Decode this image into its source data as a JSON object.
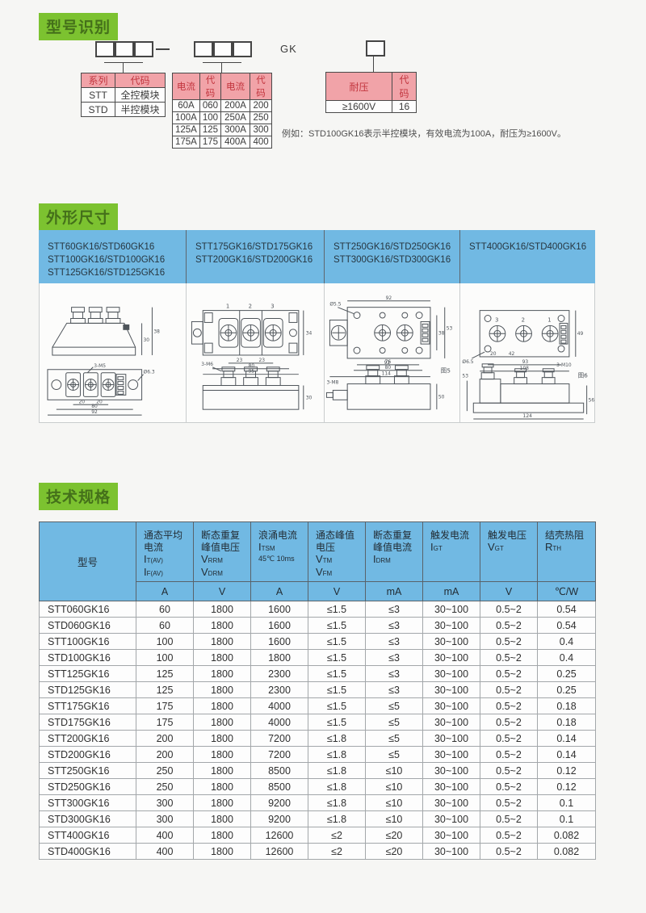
{
  "colors": {
    "green_bg": "#7cc230",
    "green_text": "#44701a",
    "pink_header_bg": "#f1a3a8",
    "pink_header_text": "#c2353e",
    "blue_header": "#71b9e3",
    "page_bg": "#f6f6f4"
  },
  "section_model": {
    "title": "型号识别",
    "gk_label": "GK",
    "series_table": {
      "headers": [
        "系列",
        "代码"
      ],
      "rows": [
        [
          "STT",
          "全控模块"
        ],
        [
          "STD",
          "半控模块"
        ]
      ]
    },
    "current_table": {
      "headers": [
        "电流",
        "代码",
        "电流",
        "代码"
      ],
      "rows": [
        [
          "60A",
          "060",
          "200A",
          "200"
        ],
        [
          "100A",
          "100",
          "250A",
          "250"
        ],
        [
          "125A",
          "125",
          "300A",
          "300"
        ],
        [
          "175A",
          "175",
          "400A",
          "400"
        ]
      ]
    },
    "voltage_table": {
      "headers": [
        "耐压",
        "代码"
      ],
      "rows": [
        [
          "≥1600V",
          "16"
        ]
      ]
    },
    "example_note": "例如：STD100GK16表示半控模块，有效电流为100A，耐压为≥1600V。"
  },
  "section_outline": {
    "title": "外形尺寸",
    "columns": [
      {
        "models": [
          "STT60GK16/STD60GK16",
          "STT100GK16/STD100GK16",
          "STT125GK16/STD125GK16"
        ]
      },
      {
        "models": [
          "STT175GK16/STD175GK16",
          "STT200GK16/STD200GK16"
        ]
      },
      {
        "models": [
          "STT250GK16/STD250GK16",
          "STT300GK16/STD300GK16"
        ]
      },
      {
        "models": [
          "STT400GK16/STD400GK16"
        ]
      }
    ],
    "drawings": {
      "d1": {
        "labels": [
          "3-M5",
          "Ø6.3",
          "20",
          "20",
          "80",
          "92",
          "30",
          "38"
        ]
      },
      "d2": {
        "labels": [
          "1",
          "2",
          "3",
          "23",
          "23",
          "80",
          "95",
          "34",
          "3-M6",
          "30"
        ]
      },
      "d3": {
        "labels": [
          "Ø5.5",
          "92",
          "76",
          "80",
          "114",
          "38",
          "53",
          "图5",
          "92",
          "3-M8",
          "50"
        ]
      },
      "d4": {
        "labels": [
          "3",
          "2",
          "1",
          "20",
          "42",
          "93",
          "108",
          "49",
          "Ø6.5",
          "图6",
          "3-M10",
          "124",
          "56",
          "53"
        ]
      }
    }
  },
  "spec": {
    "title": "技术规格",
    "model_header": "型号",
    "columns": [
      {
        "zh": "通态平均\n电流",
        "syms": [
          {
            "m": "I",
            "s": "T(AV)"
          },
          {
            "m": "I",
            "s": "F(AV)"
          }
        ],
        "unit": "A"
      },
      {
        "zh": "断态重复\n峰值电压",
        "syms": [
          {
            "m": "V",
            "s": "RRM"
          },
          {
            "m": "V",
            "s": "DRM"
          }
        ],
        "unit": "V"
      },
      {
        "zh": "浪涌电流",
        "syms": [
          {
            "m": "I",
            "s": "TSM"
          }
        ],
        "note": "45℃ 10ms",
        "unit": "A"
      },
      {
        "zh": "通态峰值\n电压",
        "syms": [
          {
            "m": "V",
            "s": "TM"
          },
          {
            "m": "V",
            "s": "FM"
          }
        ],
        "unit": "V"
      },
      {
        "zh": "断态重复\n峰值电流",
        "syms": [
          {
            "m": "I",
            "s": "DRM"
          }
        ],
        "unit": "mA"
      },
      {
        "zh": "触发电流",
        "syms": [
          {
            "m": "I",
            "s": "GT"
          }
        ],
        "unit": "mA"
      },
      {
        "zh": "触发电压",
        "syms": [
          {
            "m": "V",
            "s": "GT"
          }
        ],
        "unit": "V"
      },
      {
        "zh": "结壳热阻",
        "syms": [
          {
            "m": "R",
            "s": "TH"
          }
        ],
        "unit": "℃/W"
      }
    ],
    "rows": [
      [
        "STT060GK16",
        "60",
        "1800",
        "1600",
        "≤1.5",
        "≤3",
        "30~100",
        "0.5~2",
        "0.54"
      ],
      [
        "STD060GK16",
        "60",
        "1800",
        "1600",
        "≤1.5",
        "≤3",
        "30~100",
        "0.5~2",
        "0.54"
      ],
      [
        "STT100GK16",
        "100",
        "1800",
        "1600",
        "≤1.5",
        "≤3",
        "30~100",
        "0.5~2",
        "0.4"
      ],
      [
        "STD100GK16",
        "100",
        "1800",
        "1800",
        "≤1.5",
        "≤3",
        "30~100",
        "0.5~2",
        "0.4"
      ],
      [
        "STT125GK16",
        "125",
        "1800",
        "2300",
        "≤1.5",
        "≤3",
        "30~100",
        "0.5~2",
        "0.25"
      ],
      [
        "STD125GK16",
        "125",
        "1800",
        "2300",
        "≤1.5",
        "≤3",
        "30~100",
        "0.5~2",
        "0.25"
      ],
      [
        "STT175GK16",
        "175",
        "1800",
        "4000",
        "≤1.5",
        "≤5",
        "30~100",
        "0.5~2",
        "0.18"
      ],
      [
        "STD175GK16",
        "175",
        "1800",
        "4000",
        "≤1.5",
        "≤5",
        "30~100",
        "0.5~2",
        "0.18"
      ],
      [
        "STT200GK16",
        "200",
        "1800",
        "7200",
        "≤1.8",
        "≤5",
        "30~100",
        "0.5~2",
        "0.14"
      ],
      [
        "STD200GK16",
        "200",
        "1800",
        "7200",
        "≤1.8",
        "≤5",
        "30~100",
        "0.5~2",
        "0.14"
      ],
      [
        "STT250GK16",
        "250",
        "1800",
        "8500",
        "≤1.8",
        "≤10",
        "30~100",
        "0.5~2",
        "0.12"
      ],
      [
        "STD250GK16",
        "250",
        "1800",
        "8500",
        "≤1.8",
        "≤10",
        "30~100",
        "0.5~2",
        "0.12"
      ],
      [
        "STT300GK16",
        "300",
        "1800",
        "9200",
        "≤1.8",
        "≤10",
        "30~100",
        "0.5~2",
        "0.1"
      ],
      [
        "STD300GK16",
        "300",
        "1800",
        "9200",
        "≤1.8",
        "≤10",
        "30~100",
        "0.5~2",
        "0.1"
      ],
      [
        "STT400GK16",
        "400",
        "1800",
        "12600",
        "≤2",
        "≤20",
        "30~100",
        "0.5~2",
        "0.082"
      ],
      [
        "STD400GK16",
        "400",
        "1800",
        "12600",
        "≤2",
        "≤20",
        "30~100",
        "0.5~2",
        "0.082"
      ]
    ]
  }
}
